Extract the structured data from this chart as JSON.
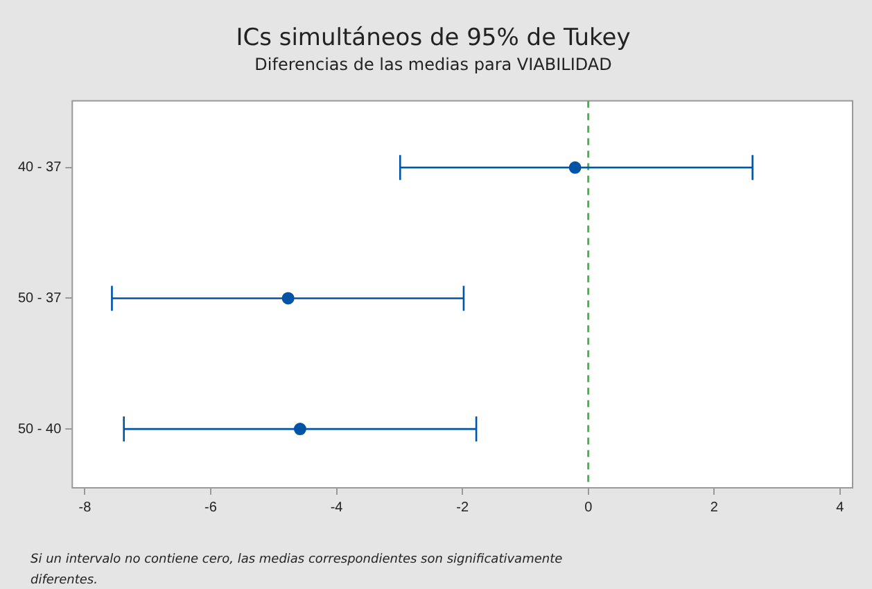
{
  "chart_data": {
    "type": "scatter",
    "orientation": "horizontal",
    "title": "ICs simultáneos de 95% de Tukey",
    "subtitle": "Diferencias de las medias para VIABILIDAD",
    "categories": [
      "40 - 37",
      "50 - 37",
      "50 - 40"
    ],
    "color": "#0054a6",
    "values": [
      -0.21,
      -4.77,
      -4.58
    ],
    "errors": [
      [
        -2.99,
        2.61
      ],
      [
        -7.57,
        -1.98
      ],
      [
        -7.38,
        -1.78
      ]
    ],
    "xlim": [
      -8.2,
      4.2
    ],
    "xticks": [
      -8,
      -6,
      -4,
      -2,
      0,
      2,
      4
    ],
    "ref_lines": [
      {
        "axis": "x",
        "value": 0,
        "color": "#4caf50",
        "line_style": "dashed"
      }
    ],
    "grid": false,
    "legend": false,
    "marker": "circle",
    "annotations": [
      "Si un intervalo no contiene cero, las medias correspondientes son significativamente diferentes."
    ]
  }
}
